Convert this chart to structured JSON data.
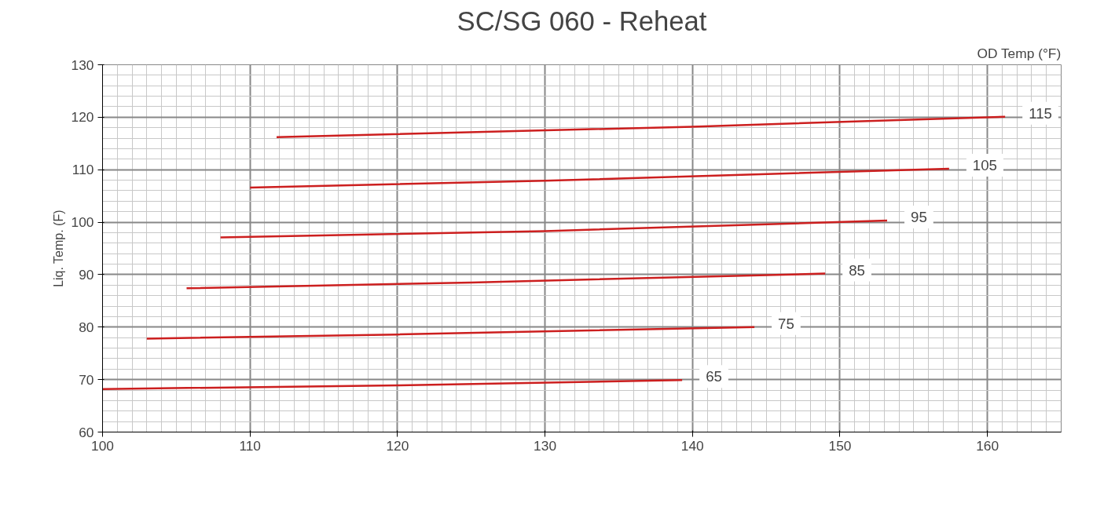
{
  "chart_data": {
    "type": "line",
    "title": "SC/SG 060 - Reheat",
    "ylabel": "Liq. Temp. (F)",
    "legend_title": "OD Temp (°F)",
    "xlim": [
      100,
      165
    ],
    "xticks": [
      100,
      110,
      120,
      130,
      140,
      150,
      160
    ],
    "ylim": [
      60,
      130
    ],
    "yticks": [
      60,
      70,
      80,
      90,
      100,
      110,
      120,
      130
    ],
    "grid": true,
    "series": [
      {
        "name": "65",
        "color": "#cc1f1f",
        "x": [
          100,
          120,
          139.3
        ],
        "values": [
          68.2,
          68.9,
          69.9
        ]
      },
      {
        "name": "75",
        "color": "#cc1f1f",
        "x": [
          103,
          120,
          144.2
        ],
        "values": [
          77.8,
          78.6,
          80.0
        ]
      },
      {
        "name": "85",
        "color": "#cc1f1f",
        "x": [
          105.7,
          125,
          149
        ],
        "values": [
          87.4,
          88.5,
          90.2
        ]
      },
      {
        "name": "95",
        "color": "#cc1f1f",
        "x": [
          108,
          130,
          153.2
        ],
        "values": [
          97.1,
          98.3,
          100.3
        ]
      },
      {
        "name": "105",
        "color": "#cc1f1f",
        "x": [
          110,
          130,
          157.4
        ],
        "values": [
          106.6,
          107.9,
          110.2
        ]
      },
      {
        "name": "115",
        "color": "#cc1f1f",
        "x": [
          111.8,
          140,
          161.2
        ],
        "values": [
          116.2,
          118.2,
          120.1
        ]
      }
    ]
  }
}
